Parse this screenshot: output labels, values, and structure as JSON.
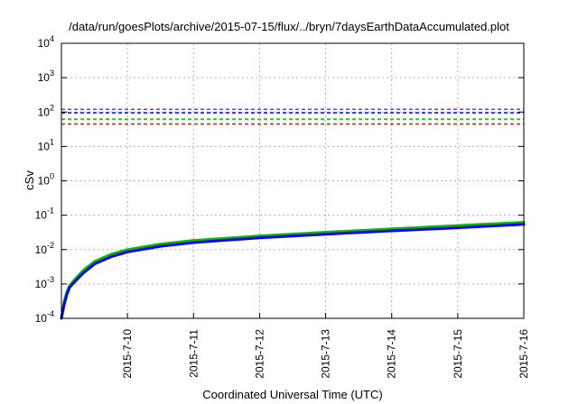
{
  "chart_data": {
    "type": "line",
    "title": "/data/run/goesPlots/archive/2015-07-15/flux/../bryn/7daysEarthDataAccumulated.plot",
    "xlabel": "Coordinated Universal Time (UTC)",
    "ylabel": "cSv",
    "y_scale": "log",
    "ylim": [
      0.0001,
      10000
    ],
    "xlim": [
      "2015-07-09T00:00",
      "2015-07-16T00:00"
    ],
    "y_ticks": [
      {
        "value": 0.0001,
        "base": "10",
        "exp": "-4"
      },
      {
        "value": 0.001,
        "base": "10",
        "exp": "-3"
      },
      {
        "value": 0.01,
        "base": "10",
        "exp": "-2"
      },
      {
        "value": 0.1,
        "base": "10",
        "exp": "-1"
      },
      {
        "value": 1,
        "base": "10",
        "exp": "0"
      },
      {
        "value": 10,
        "base": "10",
        "exp": "1"
      },
      {
        "value": 100,
        "base": "10",
        "exp": "2"
      },
      {
        "value": 1000,
        "base": "10",
        "exp": "3"
      },
      {
        "value": 10000,
        "base": "10",
        "exp": "4"
      }
    ],
    "x_ticks": [
      {
        "value": "2015-07-10T00:00",
        "label": "2015-7-10"
      },
      {
        "value": "2015-07-11T00:00",
        "label": "2015-7-11"
      },
      {
        "value": "2015-07-12T00:00",
        "label": "2015-7-12"
      },
      {
        "value": "2015-07-13T00:00",
        "label": "2015-7-13"
      },
      {
        "value": "2015-07-14T00:00",
        "label": "2015-7-14"
      },
      {
        "value": "2015-07-15T00:00",
        "label": "2015-7-15"
      },
      {
        "value": "2015-07-16T00:00",
        "label": "2015-7-16"
      }
    ],
    "grid": true,
    "legend": "none",
    "reference_lines": [
      {
        "y": 120,
        "color": "#8a2be2",
        "style": "dashed"
      },
      {
        "y": 95,
        "color": "#0000ff",
        "style": "dashed"
      },
      {
        "y": 62,
        "color": "#00c000",
        "style": "dashed"
      },
      {
        "y": 45,
        "color": "#ff0000",
        "style": "dashed"
      }
    ],
    "series": [
      {
        "color": "#00c000",
        "x": [
          "2015-07-09T00:00",
          "2015-07-09T01:00",
          "2015-07-09T02:00",
          "2015-07-09T03:00",
          "2015-07-09T05:00",
          "2015-07-09T08:00",
          "2015-07-09T12:00",
          "2015-07-09T18:00",
          "2015-07-10T00:00",
          "2015-07-10T12:00",
          "2015-07-11T00:00",
          "2015-07-12T00:00",
          "2015-07-13T00:00",
          "2015-07-14T00:00",
          "2015-07-15T00:00",
          "2015-07-16T00:00"
        ],
        "values": [
          0.0001,
          0.0003,
          0.0006,
          0.0009,
          0.0014,
          0.0025,
          0.0045,
          0.0073,
          0.01,
          0.0145,
          0.0185,
          0.025,
          0.032,
          0.04,
          0.05,
          0.062
        ]
      },
      {
        "color": "#0000ff",
        "x": [
          "2015-07-09T00:00",
          "2015-07-09T01:00",
          "2015-07-09T02:00",
          "2015-07-09T03:00",
          "2015-07-09T05:00",
          "2015-07-09T08:00",
          "2015-07-09T12:00",
          "2015-07-09T18:00",
          "2015-07-10T00:00",
          "2015-07-10T12:00",
          "2015-07-11T00:00",
          "2015-07-12T00:00",
          "2015-07-13T00:00",
          "2015-07-14T00:00",
          "2015-07-15T00:00",
          "2015-07-16T00:00"
        ],
        "values": [
          0.0001,
          0.00025,
          0.0005,
          0.0008,
          0.0012,
          0.0021,
          0.0038,
          0.0062,
          0.0085,
          0.0125,
          0.016,
          0.022,
          0.028,
          0.035,
          0.043,
          0.054
        ]
      }
    ]
  }
}
